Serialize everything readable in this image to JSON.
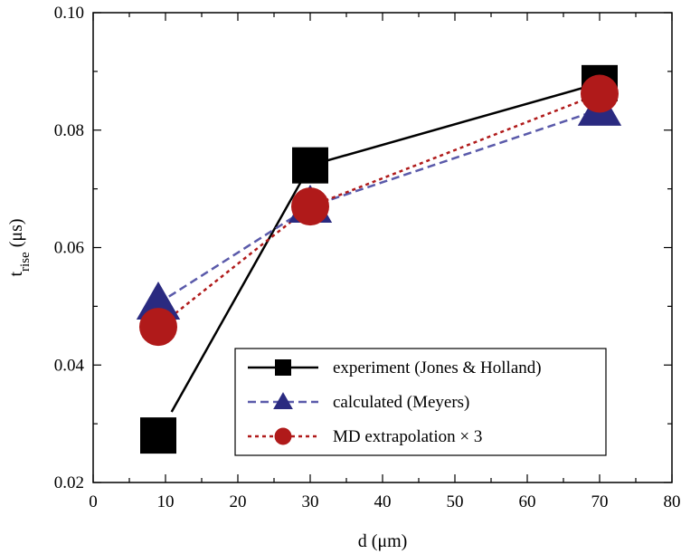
{
  "chart_data": {
    "type": "line",
    "xlabel": "d (μm)",
    "ylabel_main": "t",
    "ylabel_sub": "rise",
    "ylabel_unit": " (μs)",
    "xlim": [
      0,
      80
    ],
    "ylim": [
      0.02,
      0.1
    ],
    "xticks": [
      "0",
      "10",
      "20",
      "30",
      "40",
      "50",
      "60",
      "70",
      "80"
    ],
    "yticks": [
      "0.02",
      "0.04",
      "0.06",
      "0.08",
      "0.10"
    ],
    "grid": false,
    "legend_position": "bottom-right",
    "series": [
      {
        "name": "experiment (Jones & Holland)",
        "x": [
          9,
          30,
          70
        ],
        "y": [
          0.028,
          0.074,
          0.088
        ],
        "color": "#000000",
        "marker": "square",
        "line_style": "solid"
      },
      {
        "name": "calculated (Meyers)",
        "x": [
          9,
          30,
          70
        ],
        "y": [
          0.0505,
          0.067,
          0.0835
        ],
        "color": "#5a5aaa",
        "marker_color": "#2a2a80",
        "marker": "triangle",
        "line_style": "dashed"
      },
      {
        "name": "MD extrapolation × 3",
        "x": [
          9,
          30,
          70
        ],
        "y": [
          0.0465,
          0.067,
          0.0862
        ],
        "color": "#b01a1a",
        "marker": "circle",
        "line_style": "dotted"
      }
    ]
  }
}
